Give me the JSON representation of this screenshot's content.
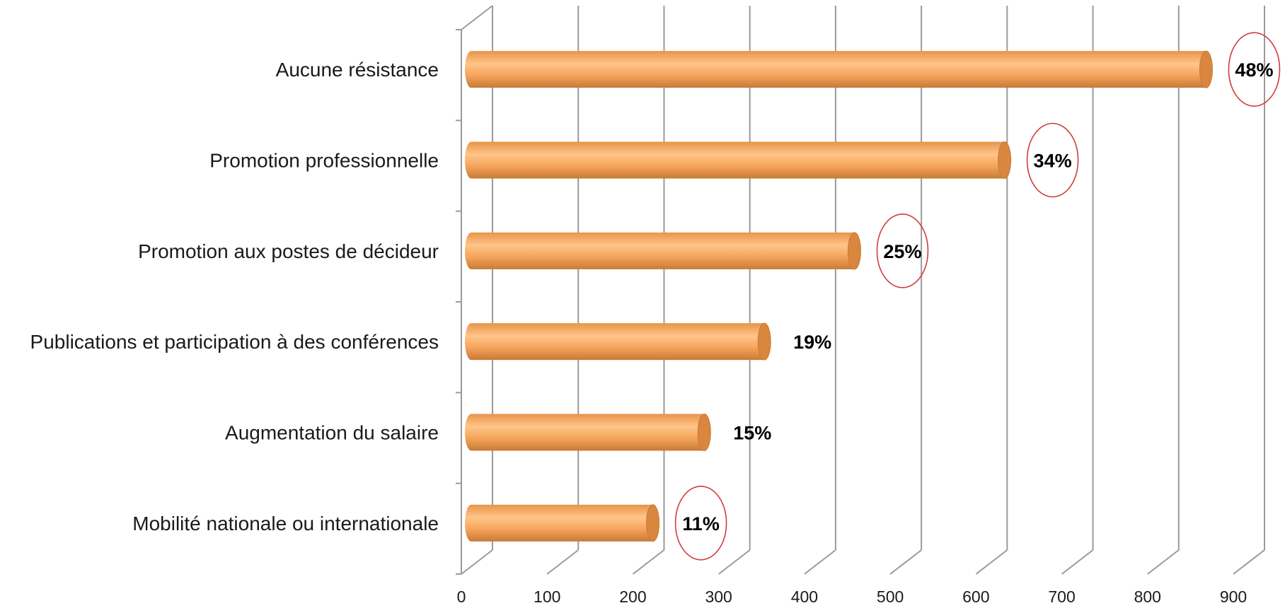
{
  "chart_data": {
    "type": "bar",
    "orientation": "horizontal",
    "style": "3d-cylinder",
    "categories": [
      "Aucune résistance",
      "Promotion professionnelle",
      "Promotion aux postes de décideur",
      "Publications et participation à des conférences",
      "Augmentation du salaire",
      "Mobilité nationale ou internationale"
    ],
    "values": [
      855,
      620,
      445,
      340,
      270,
      210
    ],
    "data_labels": [
      "48%",
      "34%",
      "25%",
      "19%",
      "15%",
      "11%"
    ],
    "circled": [
      true,
      true,
      true,
      false,
      false,
      true
    ],
    "xlim": [
      0,
      900
    ],
    "xticks": [
      0,
      100,
      200,
      300,
      400,
      500,
      600,
      700,
      800,
      900
    ],
    "xtick_labels": [
      "0",
      "100",
      "200",
      "300",
      "400",
      "500",
      "600",
      "700",
      "800",
      "900"
    ],
    "title": "",
    "xlabel": "",
    "ylabel": "",
    "grid": "vertical",
    "legend": "none",
    "colors": {
      "bar_main": "#f6a55c",
      "bar_light": "#ffc58a",
      "bar_dark": "#c87a35",
      "bar_end": "#d9873f",
      "grid": "#9a9a9a",
      "circle": "#d23b3b"
    }
  }
}
